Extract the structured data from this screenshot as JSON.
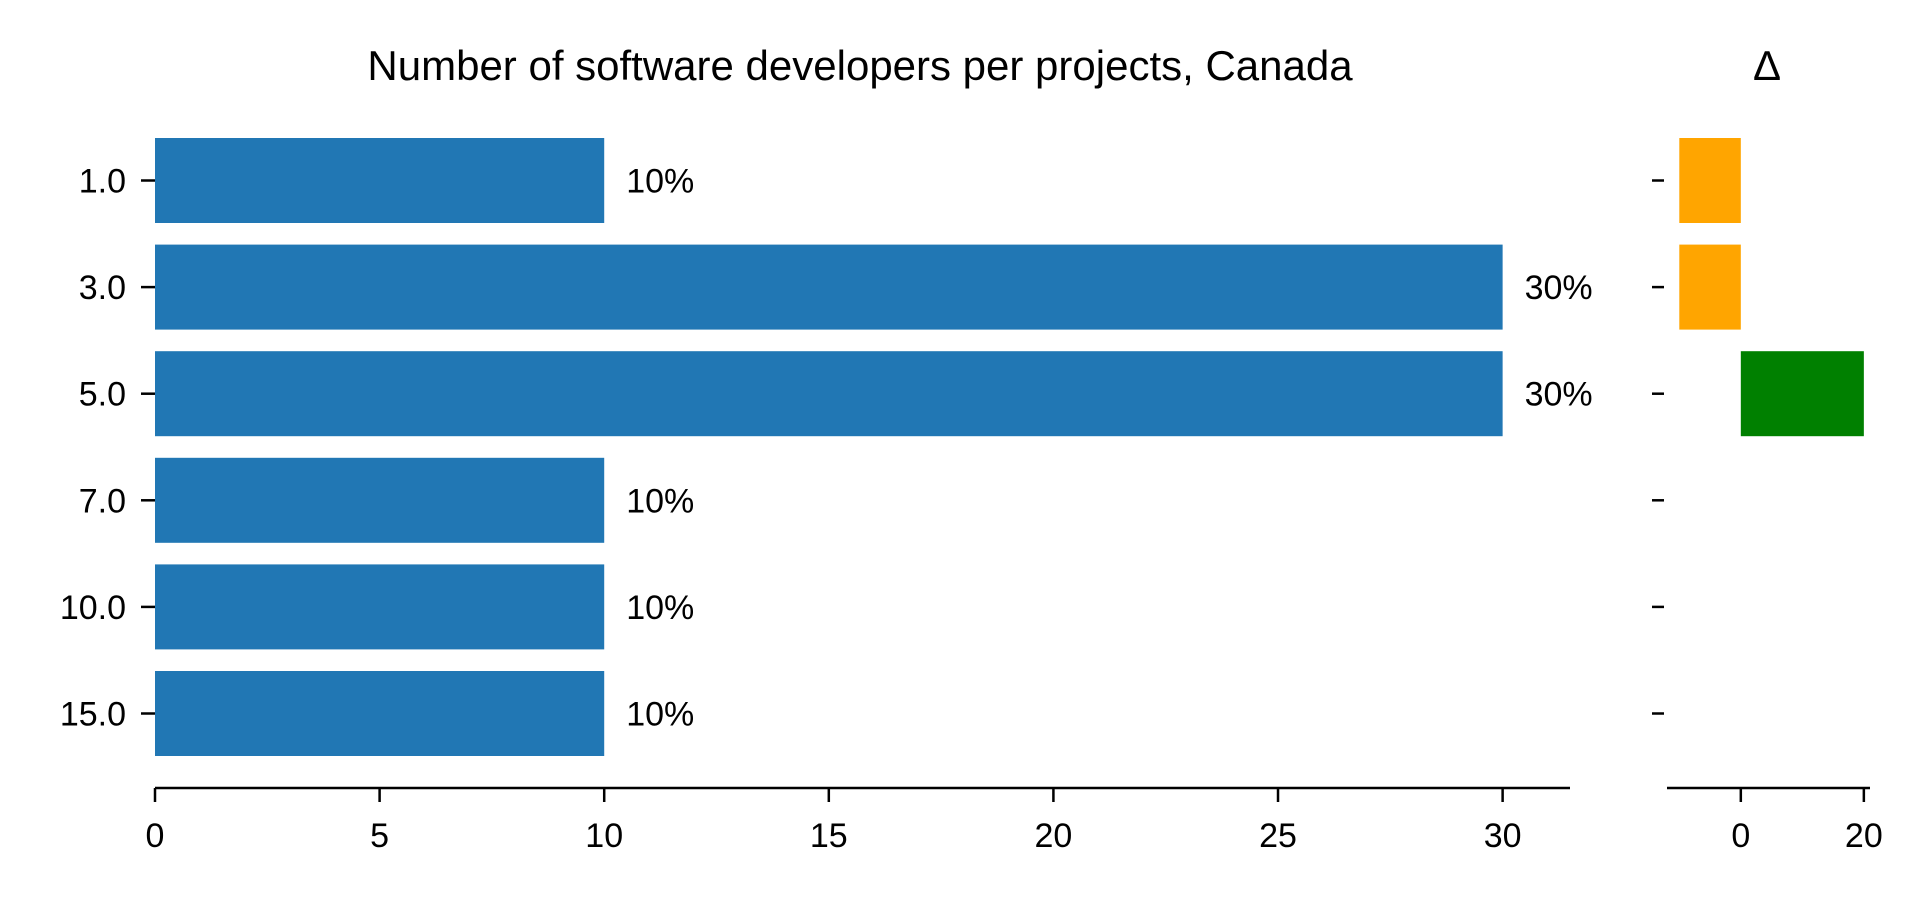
{
  "chart_data": [
    {
      "type": "bar",
      "orientation": "horizontal",
      "title": "Number of software developers per projects, Canada",
      "categories": [
        "1.0",
        "3.0",
        "5.0",
        "7.0",
        "10.0",
        "15.0"
      ],
      "values": [
        10,
        30,
        30,
        10,
        10,
        10
      ],
      "data_labels": [
        "10%",
        "30%",
        "30%",
        "10%",
        "10%",
        "10%"
      ],
      "xlim": [
        0,
        31.5
      ],
      "xticks": [
        "0",
        "5",
        "10",
        "15",
        "20",
        "25",
        "30"
      ],
      "xtick_values": [
        0,
        5,
        10,
        15,
        20,
        25,
        30
      ],
      "bar_color": "#2177b4",
      "grid": false
    },
    {
      "type": "bar",
      "orientation": "horizontal",
      "title": "Δ",
      "categories": [
        "1.0",
        "3.0",
        "5.0",
        "7.0",
        "10.0",
        "15.0"
      ],
      "values": [
        -10,
        -10,
        20,
        0,
        0,
        0
      ],
      "xlim": [
        -12,
        21
      ],
      "xticks": [
        "0",
        "20"
      ],
      "xtick_values": [
        0,
        20
      ],
      "negative_color": "#ffa500",
      "positive_color": "#008000",
      "grid": false
    }
  ]
}
